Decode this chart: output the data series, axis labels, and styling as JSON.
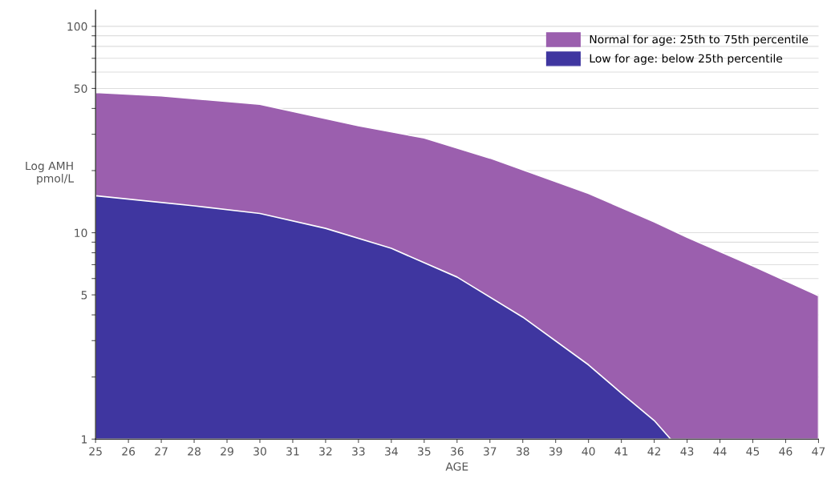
{
  "chart_data": {
    "type": "area",
    "xlabel": "AGE",
    "ylabel": "Log AMH\npmol/L",
    "series": [
      {
        "name": "Normal for age: 25th to 75th percentile",
        "color": "#9b5fae",
        "x": [
          25,
          27,
          30,
          33,
          35,
          37,
          40,
          42,
          43,
          45,
          47
        ],
        "values": [
          47.8,
          46,
          41.9,
          33,
          28.8,
          23,
          15.5,
          11.3,
          9.5,
          6.9,
          4.95
        ]
      },
      {
        "name": "Low for age: below 25th percentile",
        "color": "#3f36a0",
        "x": [
          25,
          28,
          30,
          32,
          34,
          36,
          38,
          40,
          41,
          42,
          42.5
        ],
        "values": [
          15.1,
          13.5,
          12.4,
          10.5,
          8.4,
          6.1,
          3.9,
          2.29,
          1.67,
          1.23,
          1
        ]
      }
    ],
    "log": true,
    "xlim": [
      25,
      47
    ],
    "xticks": [
      25,
      26,
      27,
      28,
      29,
      30,
      31,
      32,
      33,
      34,
      35,
      36,
      37,
      38,
      39,
      40,
      41,
      42,
      43,
      44,
      45,
      46,
      47
    ],
    "ylim": [
      1,
      120
    ],
    "yticks": [
      1,
      {
        "value": 2,
        "label": null
      },
      {
        "value": 3,
        "label": null
      },
      {
        "value": 4,
        "label": null
      },
      5,
      {
        "value": 6,
        "label": null
      },
      {
        "value": 7,
        "label": null
      },
      {
        "value": 8,
        "label": null
      },
      {
        "value": 9,
        "label": null
      },
      10,
      {
        "value": 20,
        "label": null
      },
      {
        "value": 30,
        "label": null
      },
      {
        "value": 40,
        "label": null
      },
      50,
      {
        "value": 60,
        "label": null
      },
      {
        "value": 70,
        "label": null
      },
      {
        "value": 80,
        "label": null
      },
      {
        "value": 90,
        "label": null
      },
      100
    ],
    "grid": "y",
    "legend": "top right"
  }
}
